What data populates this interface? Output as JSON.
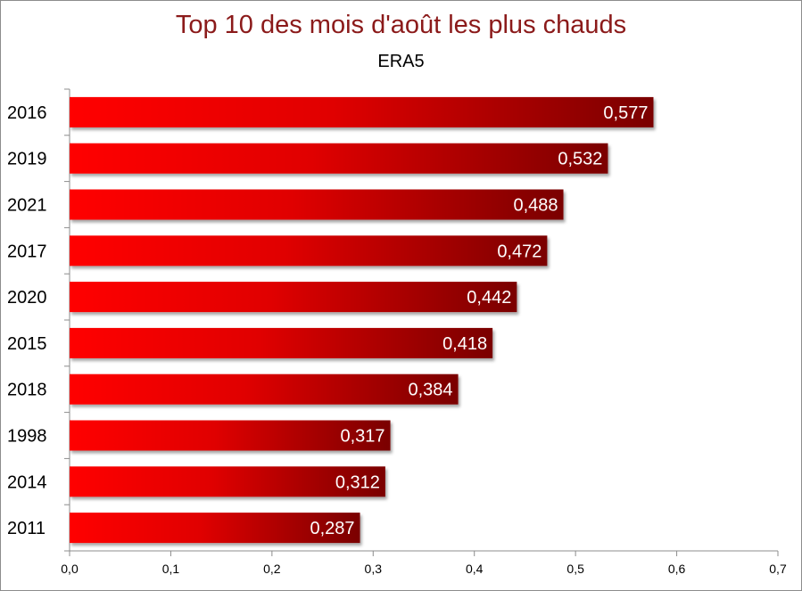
{
  "chart_data": {
    "type": "bar",
    "orientation": "horizontal",
    "title": "Top 10 des mois d'août les plus chauds",
    "subtitle": "ERA5",
    "categories": [
      "2016",
      "2019",
      "2021",
      "2017",
      "2020",
      "2015",
      "2018",
      "1998",
      "2014",
      "2011"
    ],
    "values": [
      0.577,
      0.532,
      0.488,
      0.472,
      0.442,
      0.418,
      0.384,
      0.317,
      0.312,
      0.287
    ],
    "value_labels": [
      "0,577",
      "0,532",
      "0,488",
      "0,472",
      "0,442",
      "0,418",
      "0,384",
      "0,317",
      "0,312",
      "0,287"
    ],
    "xlim": [
      0,
      0.7
    ],
    "x_ticks": [
      0,
      0.1,
      0.2,
      0.3,
      0.4,
      0.5,
      0.6,
      0.7
    ],
    "x_tick_labels": [
      "0,0",
      "0,1",
      "0,2",
      "0,3",
      "0,4",
      "0,5",
      "0,6",
      "0,7"
    ],
    "xlabel": "",
    "ylabel": "",
    "grid": false,
    "legend": "none",
    "colors": {
      "bar_start": "#ff0000",
      "bar_end": "#7a0000",
      "title": "#8b1a1a",
      "axis": "#8c8c8c"
    }
  }
}
